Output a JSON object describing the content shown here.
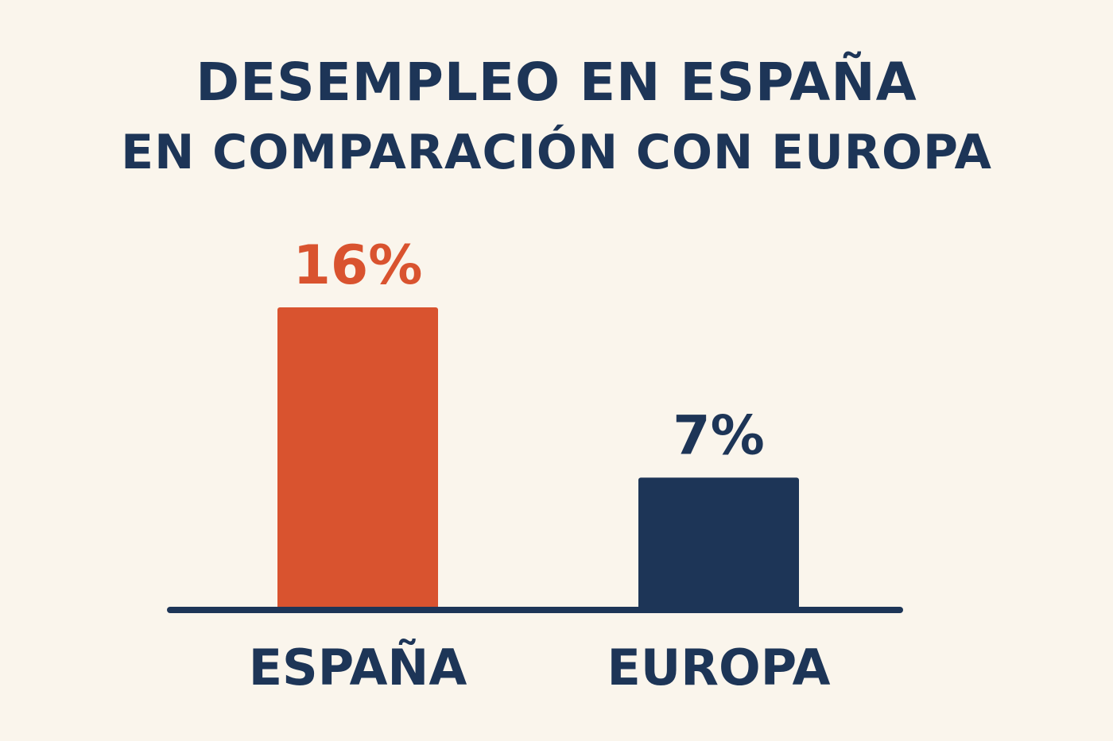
{
  "chart_data": {
    "type": "bar",
    "title": "DESEMPLEO EN ESPAÑA",
    "subtitle": "EN COMPARACIÓN CON EUROPA",
    "categories": [
      "ESPAÑA",
      "EUROPA"
    ],
    "values": [
      16,
      7
    ],
    "value_labels": [
      "16%",
      "7%"
    ],
    "colors": [
      "#d9532f",
      "#1d3557"
    ],
    "ylim": [
      0,
      16
    ],
    "grid": false,
    "legend": "none"
  },
  "colors": {
    "background": "#faf5ec",
    "text": "#1d3557",
    "accent": "#d9532f",
    "axis": "#1d3557"
  }
}
